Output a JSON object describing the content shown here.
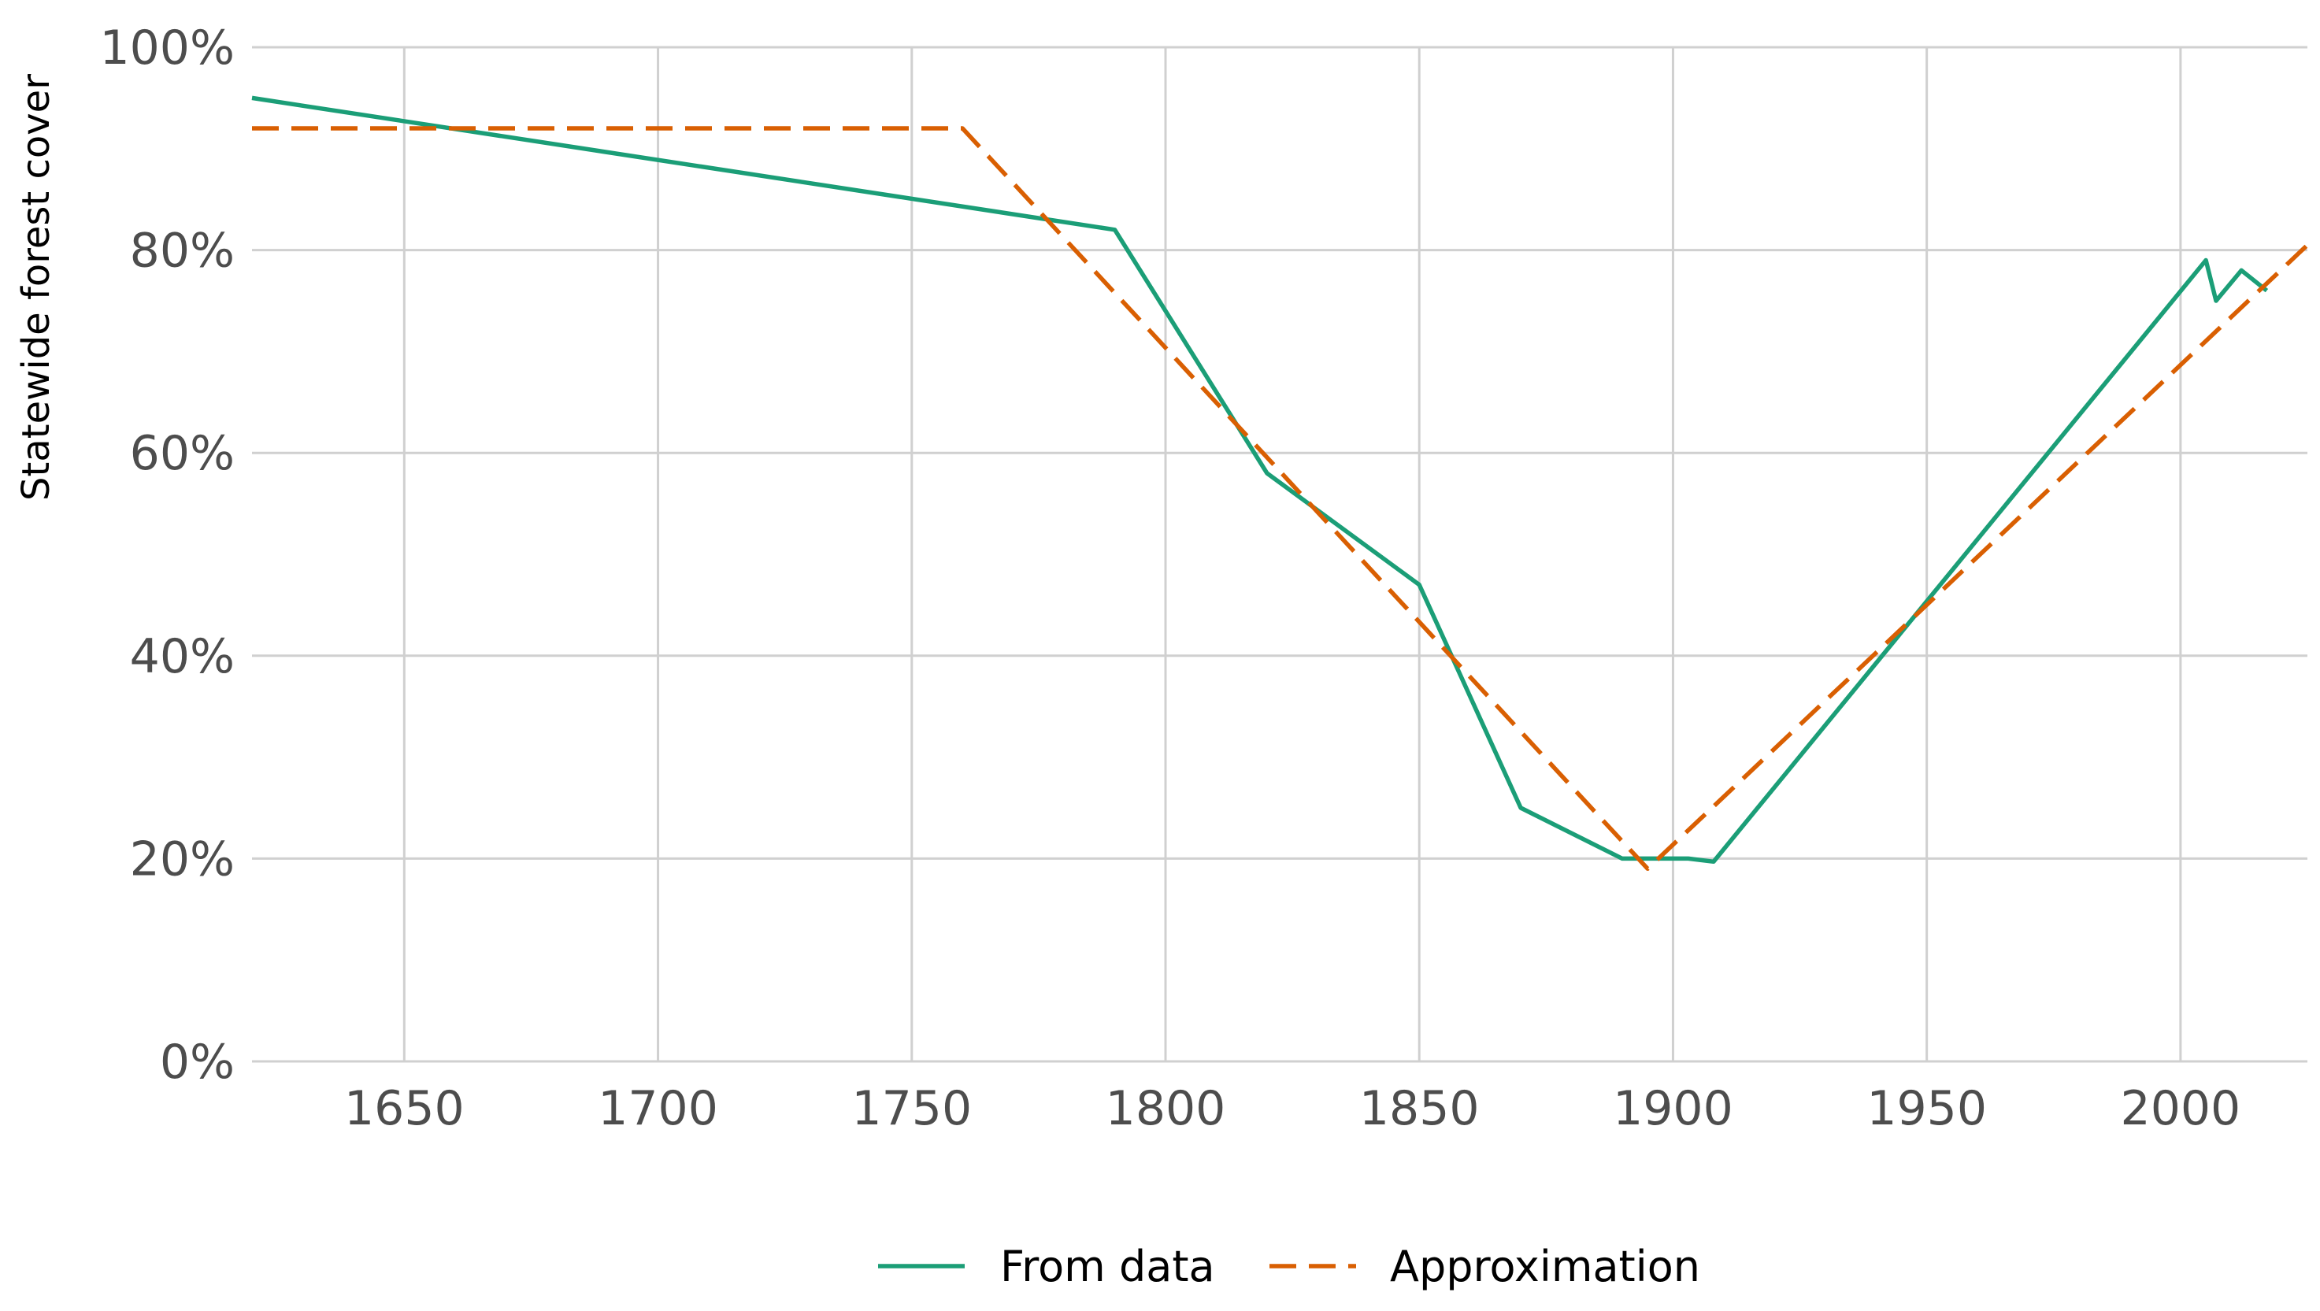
{
  "chart_data": {
    "type": "line",
    "title": "",
    "xlabel": "",
    "ylabel": "Statewide forest cover",
    "xlim": [
      1620,
      2025
    ],
    "ylim": [
      0,
      1
    ],
    "x_ticks": [
      1650,
      1700,
      1750,
      1800,
      1850,
      1900,
      1950,
      2000
    ],
    "x_tick_labels": [
      "1650",
      "1700",
      "1750",
      "1800",
      "1850",
      "1900",
      "1950",
      "2000"
    ],
    "y_ticks": [
      0,
      0.2,
      0.4,
      0.6,
      0.8,
      1.0
    ],
    "y_tick_labels": [
      "0%",
      "20%",
      "40%",
      "60%",
      "80%",
      "100%"
    ],
    "grid": true,
    "legend_position": "bottom",
    "series": [
      {
        "name": "From data",
        "color": "#1b9e77",
        "dash": "solid",
        "x": [
          1620,
          1790,
          1820,
          1850,
          1870,
          1890,
          1903,
          1908,
          2005,
          2007,
          2012,
          2017
        ],
        "y": [
          0.95,
          0.82,
          0.58,
          0.47,
          0.25,
          0.2,
          0.2,
          0.197,
          0.79,
          0.75,
          0.78,
          0.76
        ]
      },
      {
        "name": "Approximation",
        "color": "#d95f02",
        "dash": "dashed",
        "x": [
          1620,
          1760,
          1895,
          2025
        ],
        "y": [
          0.92,
          0.92,
          0.19,
          0.805
        ]
      }
    ]
  }
}
